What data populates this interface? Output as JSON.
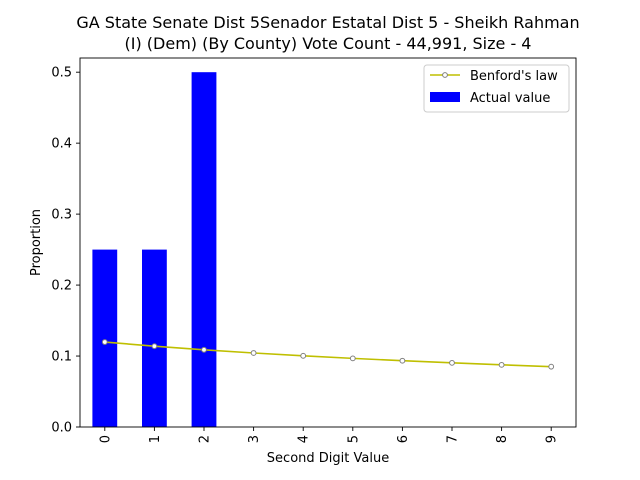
{
  "chart_data": {
    "type": "bar",
    "title": "GA State Senate Dist 5Senador Estatal Dist 5 - Sheikh Rahman (I) (Dem) (By County) Vote Count - 44,991, Size - 4",
    "title_lines": [
      "GA State Senate Dist 5Senador Estatal Dist 5 - Sheikh Rahman",
      "(I) (Dem) (By County) Vote Count - 44,991, Size - 4"
    ],
    "xlabel": "Second Digit Value",
    "ylabel": "Proportion",
    "categories": [
      "0",
      "1",
      "2",
      "3",
      "4",
      "5",
      "6",
      "7",
      "8",
      "9"
    ],
    "ylim": [
      0,
      0.52
    ],
    "yticks": [
      0.0,
      0.1,
      0.2,
      0.3,
      0.4,
      0.5
    ],
    "ytick_labels": [
      "0.0",
      "0.1",
      "0.2",
      "0.3",
      "0.4",
      "0.5"
    ],
    "grid": false,
    "legend_position": "top-right",
    "series": [
      {
        "name": "Actual value",
        "type": "bar",
        "color": "#0000ff",
        "values": [
          0.25,
          0.25,
          0.5,
          0,
          0,
          0,
          0,
          0,
          0,
          0
        ]
      },
      {
        "name": "Benford's law",
        "type": "line",
        "color": "#bfbf00",
        "marker_color": "#808080",
        "values": [
          0.1197,
          0.1139,
          0.1088,
          0.1043,
          0.1003,
          0.0967,
          0.0934,
          0.0904,
          0.0876,
          0.085
        ]
      }
    ]
  }
}
